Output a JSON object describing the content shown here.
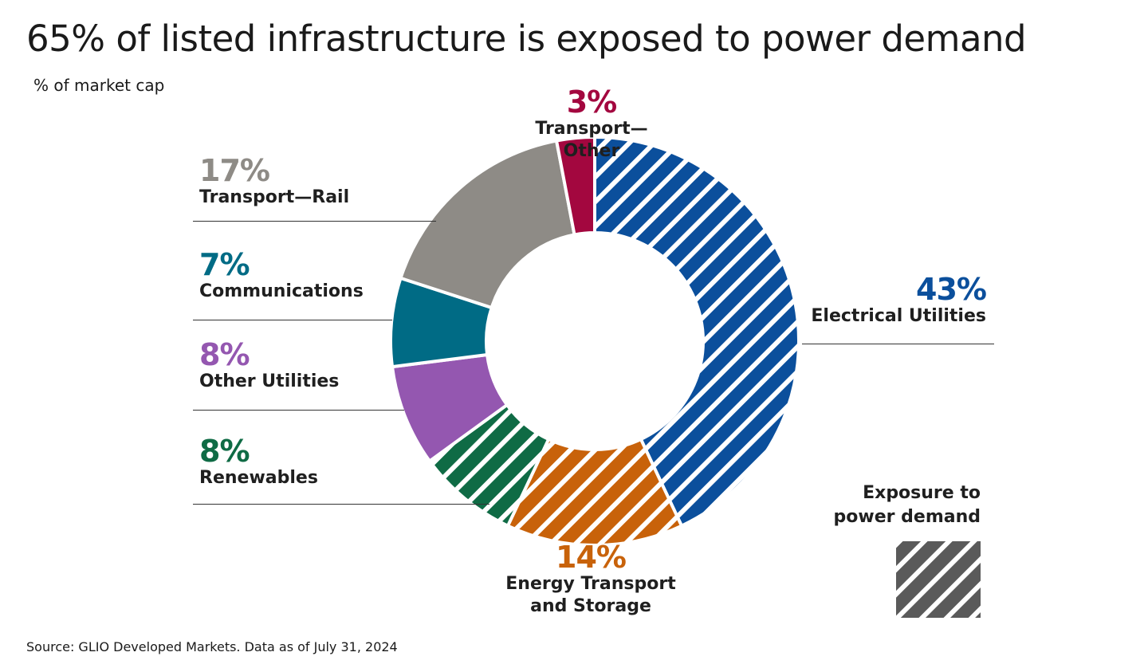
{
  "title": "65% of listed infrastructure is exposed to power demand",
  "subtitle": "% of market cap",
  "source": "Source: GLIO Developed Markets. Data as of July 31, 2024",
  "legend": {
    "label_line1": "Exposure to",
    "label_line2": "power demand",
    "hatch_color": "#5a5a5a"
  },
  "chart_data": {
    "type": "pie",
    "variant": "donut",
    "unit": "% of market cap",
    "slices": [
      {
        "name": "Electrical Utilities",
        "pct_label": "43%",
        "value": 43,
        "color": "#0b4f9c",
        "hatched": true
      },
      {
        "name": "Energy Transport and Storage",
        "name_line1": "Energy Transport",
        "name_line2": "and Storage",
        "pct_label": "14%",
        "value": 14,
        "color": "#c8620a",
        "hatched": true
      },
      {
        "name": "Renewables",
        "pct_label": "8%",
        "value": 8,
        "color": "#0f6b45",
        "hatched": true
      },
      {
        "name": "Other Utilities",
        "pct_label": "8%",
        "value": 8,
        "color": "#9457b0",
        "hatched": false
      },
      {
        "name": "Communications",
        "pct_label": "7%",
        "value": 7,
        "color": "#006b85",
        "hatched": false
      },
      {
        "name": "Transport—Rail",
        "pct_label": "17%",
        "value": 17,
        "color": "#8e8b86",
        "hatched": false
      },
      {
        "name": "Transport—Other",
        "pct_label": "3%",
        "value": 3,
        "color": "#a3073f",
        "hatched": false
      }
    ]
  }
}
